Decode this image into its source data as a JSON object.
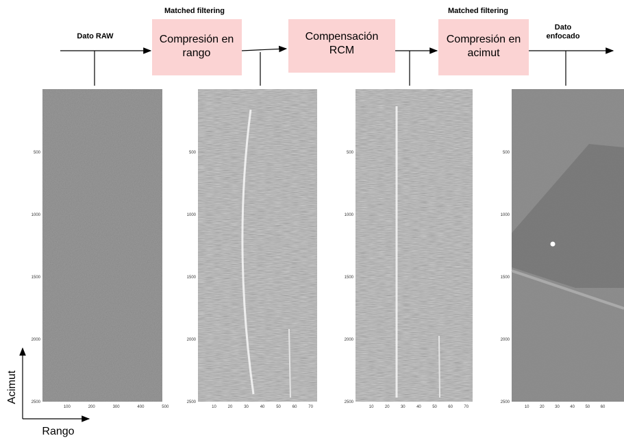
{
  "flow": {
    "labels": [
      {
        "text": "Matched filtering"
      },
      {
        "text": "Matched filtering"
      },
      {
        "text": "Dato RAW"
      },
      {
        "text": "Dato enfocado"
      }
    ],
    "boxes": [
      {
        "label": "Compresión en rango"
      },
      {
        "label": "Compensación RCM"
      },
      {
        "label": "Compresión en acimut"
      }
    ]
  },
  "panels": [
    {
      "yticks": [
        "500",
        "1000",
        "1500",
        "2000",
        "2500"
      ],
      "xticks": [
        "100",
        "200",
        "300",
        "400",
        "500"
      ]
    },
    {
      "yticks": [
        "500",
        "1000",
        "1500",
        "2000",
        "2500"
      ],
      "xticks": [
        "10",
        "20",
        "30",
        "40",
        "50",
        "60",
        "70"
      ]
    },
    {
      "yticks": [
        "500",
        "1000",
        "1500",
        "2000",
        "2500"
      ],
      "xticks": [
        "10",
        "20",
        "30",
        "40",
        "50",
        "60",
        "70"
      ]
    },
    {
      "yticks": [
        "500",
        "1000",
        "1500",
        "2000",
        "2500"
      ],
      "xticks": [
        "10",
        "20",
        "30",
        "40",
        "50",
        "60"
      ]
    }
  ],
  "axes": {
    "vertical": "Acimut",
    "horizontal": "Rango"
  }
}
